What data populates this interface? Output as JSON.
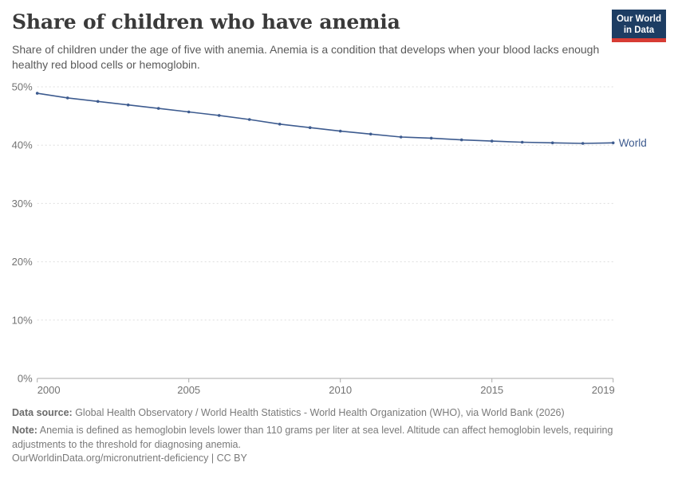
{
  "header": {
    "title": "Share of children who have anemia",
    "subtitle": "Share of children under the age of five with anemia. Anemia is a condition that develops when your blood lacks enough healthy red blood cells or hemoglobin.",
    "logo": {
      "line1": "Our World",
      "line2": "in Data",
      "bg_color": "#1d3d63",
      "bar_color": "#d73c34"
    }
  },
  "chart_data": {
    "type": "line",
    "title": "Share of children who have anemia",
    "x": [
      2000,
      2001,
      2002,
      2003,
      2004,
      2005,
      2006,
      2007,
      2008,
      2009,
      2010,
      2011,
      2012,
      2013,
      2014,
      2015,
      2016,
      2017,
      2018,
      2019
    ],
    "series": [
      {
        "name": "World",
        "color": "#3d5b8f",
        "values": [
          48.9,
          48.1,
          47.5,
          46.9,
          46.3,
          45.7,
          45.1,
          44.4,
          43.6,
          43.0,
          42.4,
          41.9,
          41.4,
          41.2,
          40.9,
          40.7,
          40.5,
          40.4,
          40.3,
          40.4
        ]
      }
    ],
    "xlabel": "",
    "ylabel": "",
    "xlim": [
      2000,
      2019
    ],
    "ylim": [
      0,
      50
    ],
    "xticks": [
      2000,
      2005,
      2010,
      2015,
      2019
    ],
    "yticks": [
      0,
      10,
      20,
      30,
      40,
      50
    ],
    "ytick_suffix": "%",
    "grid": "horizontal dashed",
    "legend": "end-of-line label",
    "grid_color": "#dedede",
    "axis_color": "#a9a9a9",
    "tick_label_color": "#737373"
  },
  "footer": {
    "data_source_label": "Data source:",
    "data_source_text": " Global Health Observatory / World Health Statistics - World Health Organization (WHO), via World Bank (2026)",
    "note_label": "Note:",
    "note_text": " Anemia is defined as hemoglobin levels lower than 110 grams per liter at sea level. Altitude can affect hemoglobin levels, requiring adjustments to the threshold for diagnosing anemia.",
    "url": "OurWorldinData.org/micronutrient-deficiency",
    "license": " | CC BY"
  }
}
